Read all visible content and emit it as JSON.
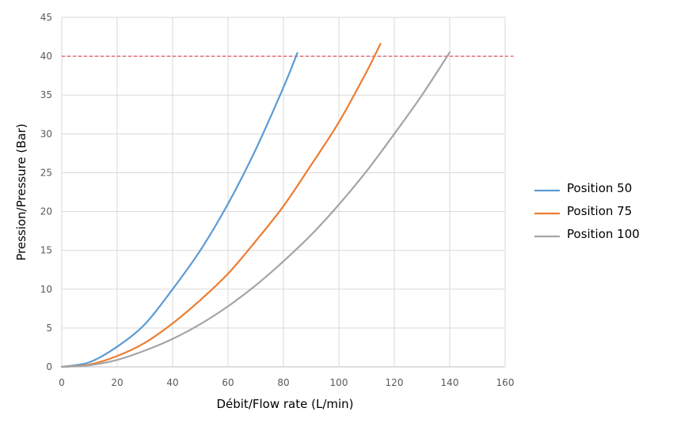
{
  "chart_data": {
    "type": "line",
    "title": "",
    "xlabel": "Débit/Flow rate (L/min)",
    "ylabel": "Pression/Pressure (Bar)",
    "xlim": [
      0,
      160
    ],
    "ylim": [
      0,
      45
    ],
    "x_ticks": [
      0,
      20,
      40,
      60,
      80,
      100,
      120,
      140,
      160
    ],
    "y_ticks": [
      0,
      5,
      10,
      15,
      20,
      25,
      30,
      35,
      40,
      45
    ],
    "grid": true,
    "legend_position": "right",
    "reference_line": {
      "y": 40,
      "color": "#e8485a",
      "style": "dashed"
    },
    "series": [
      {
        "name": "Position 50",
        "color": "#5b9bd5",
        "points": [
          [
            0,
            0
          ],
          [
            10,
            0.6
          ],
          [
            20,
            2.6
          ],
          [
            30,
            5.5
          ],
          [
            40,
            10
          ],
          [
            50,
            15
          ],
          [
            60,
            21
          ],
          [
            70,
            28
          ],
          [
            80,
            36
          ],
          [
            85,
            40.4
          ]
        ]
      },
      {
        "name": "Position 75",
        "color": "#ed7d31",
        "points": [
          [
            0,
            0
          ],
          [
            10,
            0.3
          ],
          [
            20,
            1.4
          ],
          [
            30,
            3.1
          ],
          [
            40,
            5.6
          ],
          [
            50,
            8.6
          ],
          [
            60,
            12
          ],
          [
            70,
            16.2
          ],
          [
            80,
            20.7
          ],
          [
            90,
            26
          ],
          [
            100,
            31.5
          ],
          [
            110,
            38
          ],
          [
            115,
            41.6
          ]
        ]
      },
      {
        "name": "Position 100",
        "color": "#a5a5a5",
        "points": [
          [
            0,
            0
          ],
          [
            10,
            0.2
          ],
          [
            20,
            0.9
          ],
          [
            30,
            2.1
          ],
          [
            40,
            3.6
          ],
          [
            50,
            5.5
          ],
          [
            60,
            7.8
          ],
          [
            70,
            10.5
          ],
          [
            80,
            13.6
          ],
          [
            90,
            17
          ],
          [
            100,
            20.9
          ],
          [
            110,
            25.2
          ],
          [
            120,
            30
          ],
          [
            130,
            35
          ],
          [
            140,
            40.5
          ]
        ]
      }
    ]
  }
}
